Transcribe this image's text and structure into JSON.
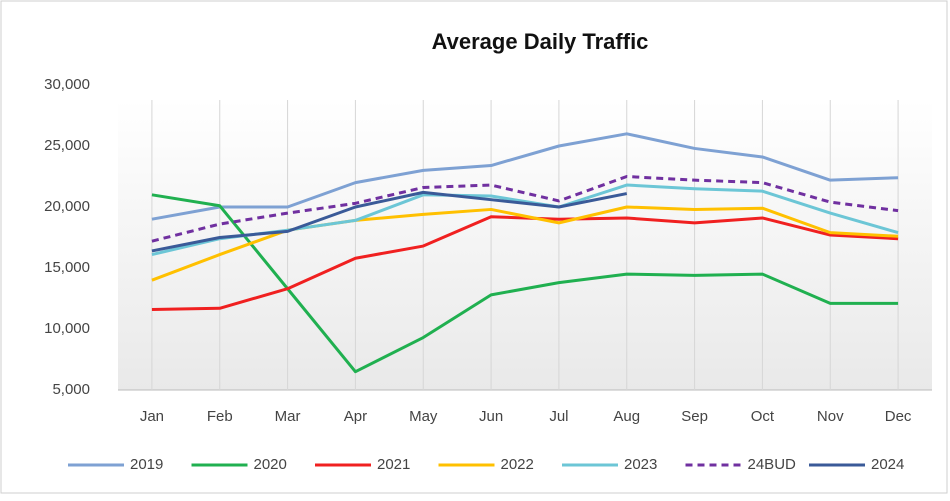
{
  "chart_data": {
    "type": "line",
    "title": "Average Daily Traffic",
    "categories": [
      "Jan",
      "Feb",
      "Mar",
      "Apr",
      "May",
      "Jun",
      "Jul",
      "Aug",
      "Sep",
      "Oct",
      "Nov",
      "Dec"
    ],
    "ylim": [
      5000,
      30000
    ],
    "yticks": [
      {
        "value": 5000,
        "label": "5,000"
      },
      {
        "value": 10000,
        "label": "10,000"
      },
      {
        "value": 15000,
        "label": "15,000"
      },
      {
        "value": 20000,
        "label": "20,000"
      },
      {
        "value": 25000,
        "label": "25,000"
      },
      {
        "value": 30000,
        "label": "30,000"
      }
    ],
    "grid": true,
    "legend": "bottom",
    "series": [
      {
        "name": "2019",
        "color": "#7ea1d3",
        "values": [
          19000,
          20000,
          20000,
          22000,
          23000,
          23400,
          25000,
          26000,
          24800,
          24100,
          22200,
          22400
        ]
      },
      {
        "name": "2020",
        "color": "#20b050",
        "values": [
          21000,
          20100,
          13300,
          6500,
          9300,
          12800,
          13800,
          14500,
          14400,
          14500,
          12100,
          12100
        ]
      },
      {
        "name": "2021",
        "color": "#f02020",
        "values": [
          11600,
          11700,
          13300,
          15800,
          16800,
          19200,
          19000,
          19100,
          18700,
          19100,
          17700,
          17400
        ]
      },
      {
        "name": "2022",
        "color": "#ffc000",
        "values": [
          14000,
          16100,
          18100,
          18900,
          19400,
          19800,
          18700,
          20000,
          19800,
          19900,
          17900,
          17600
        ]
      },
      {
        "name": "2023",
        "color": "#6cc6d6",
        "values": [
          16100,
          17400,
          18100,
          18900,
          21000,
          20900,
          20000,
          21800,
          21500,
          21300,
          19500,
          17900
        ]
      },
      {
        "name": "24BUD",
        "color": "#7030a0",
        "dashed": true,
        "values": [
          17200,
          18600,
          19500,
          20300,
          21600,
          21800,
          20500,
          22500,
          22200,
          22000,
          20400,
          19700
        ]
      },
      {
        "name": "2024",
        "color": "#3a5a98",
        "values": [
          16400,
          17500,
          18000,
          20000,
          21200,
          20600,
          20000,
          21100,
          null,
          null,
          null,
          null
        ]
      }
    ]
  }
}
